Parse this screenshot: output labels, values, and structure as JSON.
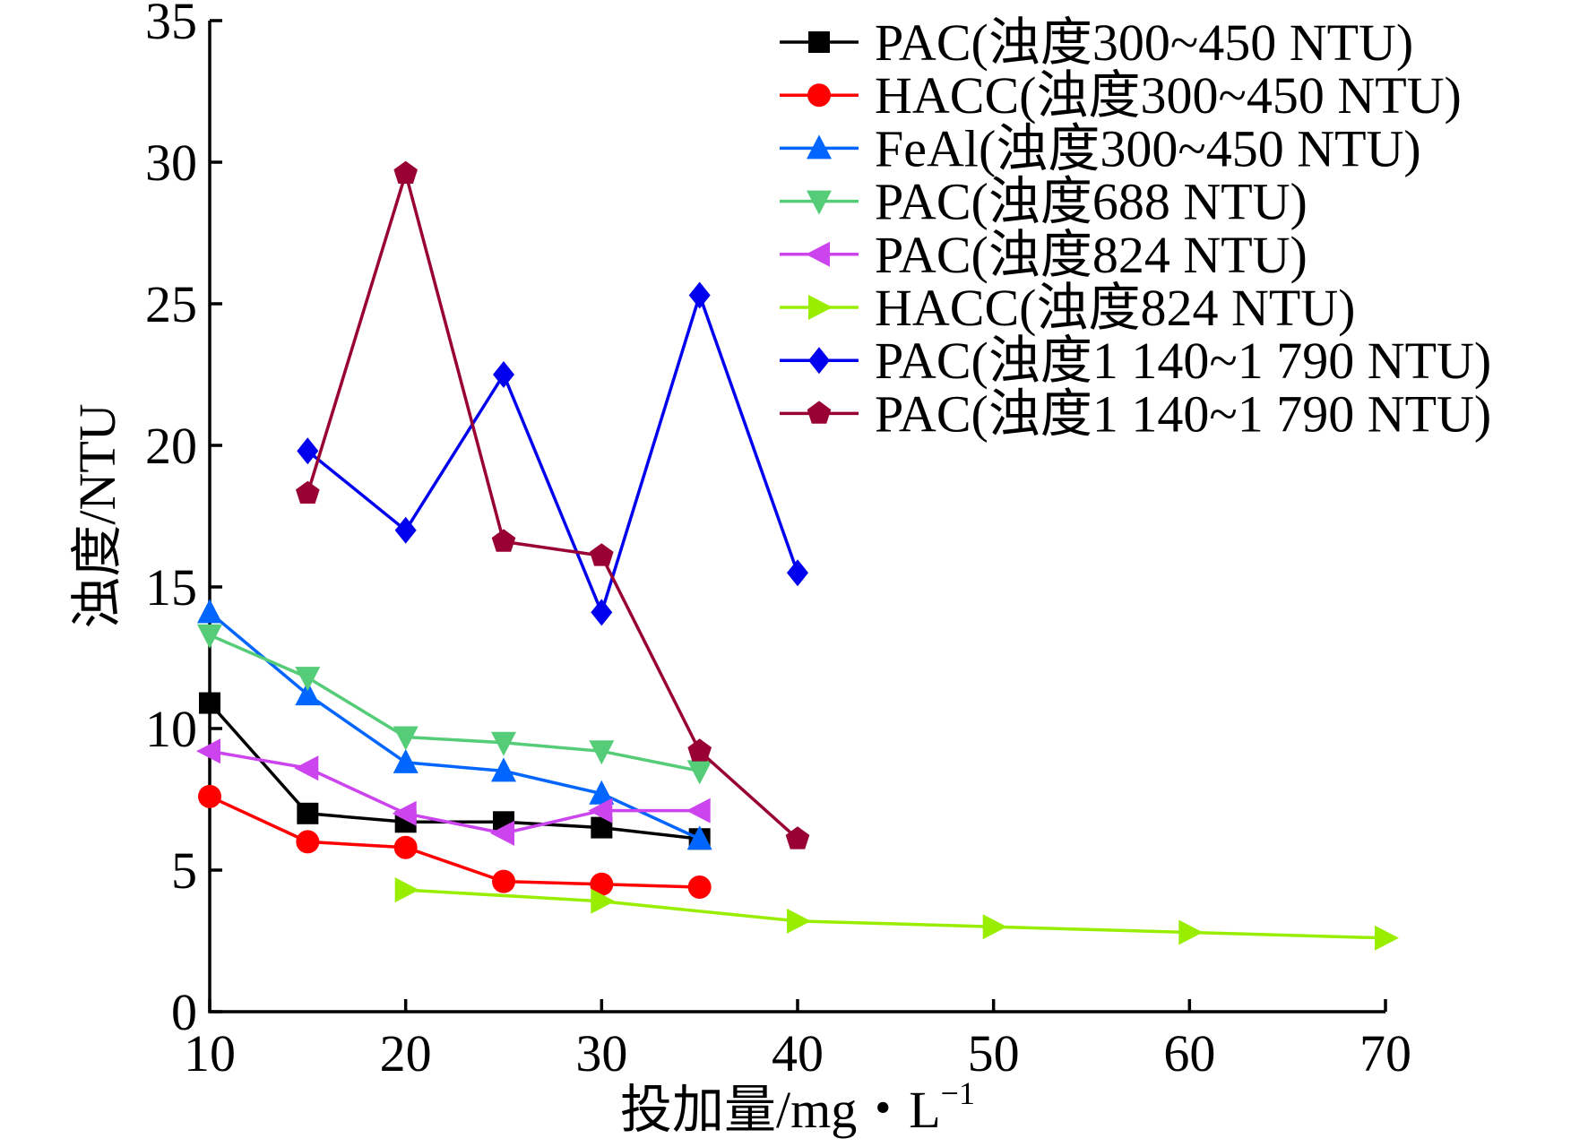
{
  "chart_data": {
    "type": "line",
    "xlabel": "投加量/mg・L",
    "xlabel_sup": "−1",
    "ylabel": "浊度/NTU",
    "xlim": [
      10,
      70
    ],
    "ylim": [
      0,
      35
    ],
    "x_ticks": [
      "10",
      "20",
      "30",
      "40",
      "50",
      "60",
      "70"
    ],
    "y_ticks": [
      "0",
      "5",
      "10",
      "15",
      "20",
      "25",
      "30",
      "35"
    ],
    "grid": false,
    "legend_position": "top-right",
    "series": [
      {
        "name": "PAC(浊度300~450 NTU)",
        "color": "#000000",
        "marker": "square",
        "x": [
          10,
          15,
          20,
          25,
          30,
          35
        ],
        "y": [
          10.9,
          7.0,
          6.7,
          6.7,
          6.5,
          6.1
        ]
      },
      {
        "name": "HACC(浊度300~450 NTU)",
        "color": "#ff0000",
        "marker": "circle",
        "x": [
          10,
          15,
          20,
          25,
          30,
          35
        ],
        "y": [
          7.6,
          6.0,
          5.8,
          4.6,
          4.5,
          4.4
        ]
      },
      {
        "name": "FeAl(浊度300~450 NTU)",
        "color": "#0066ff",
        "marker": "triangle-up",
        "x": [
          10,
          15,
          20,
          25,
          30,
          35
        ],
        "y": [
          14.1,
          11.2,
          8.8,
          8.5,
          7.7,
          6.1
        ]
      },
      {
        "name": "PAC(浊度688 NTU)",
        "color": "#55cc77",
        "marker": "triangle-down",
        "x": [
          10,
          15,
          20,
          25,
          30,
          35
        ],
        "y": [
          13.3,
          11.8,
          9.7,
          9.5,
          9.2,
          8.5
        ]
      },
      {
        "name": "PAC(浊度824 NTU)",
        "color": "#cc44ee",
        "marker": "triangle-left",
        "x": [
          10,
          15,
          20,
          25,
          30,
          35
        ],
        "y": [
          9.2,
          8.6,
          7.0,
          6.3,
          7.1,
          7.1
        ]
      },
      {
        "name": "HACC(浊度824 NTU)",
        "color": "#99ee00",
        "marker": "triangle-right",
        "x": [
          20,
          30,
          40,
          50,
          60,
          70
        ],
        "y": [
          4.3,
          3.9,
          3.2,
          3.0,
          2.8,
          2.6
        ]
      },
      {
        "name": "PAC(浊度1 140~1 790 NTU)",
        "color": "#0000ee",
        "marker": "diamond",
        "x": [
          15,
          20,
          25,
          30,
          35,
          40
        ],
        "y": [
          19.8,
          17.0,
          22.5,
          14.1,
          25.3,
          15.5
        ]
      },
      {
        "name": "PAC(浊度1 140~1 790 NTU)",
        "color": "#990033",
        "marker": "pentagon",
        "x": [
          15,
          20,
          25,
          30,
          35,
          40
        ],
        "y": [
          18.3,
          29.6,
          16.6,
          16.1,
          9.2,
          6.1
        ]
      }
    ]
  }
}
